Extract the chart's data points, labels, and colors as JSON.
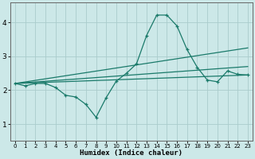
{
  "xlabel": "Humidex (Indice chaleur)",
  "bg_color": "#cce8e8",
  "grid_color": "#aacccc",
  "line_color": "#1a7a6a",
  "xlim": [
    -0.5,
    23.5
  ],
  "ylim": [
    0.5,
    4.6
  ],
  "xticks": [
    0,
    1,
    2,
    3,
    4,
    5,
    6,
    7,
    8,
    9,
    10,
    11,
    12,
    13,
    14,
    15,
    16,
    17,
    18,
    19,
    20,
    21,
    22,
    23
  ],
  "yticks": [
    1,
    2,
    3,
    4
  ],
  "main_curve": {
    "x": [
      0,
      1,
      2,
      3,
      4,
      5,
      6,
      7,
      8,
      9,
      10,
      11,
      12,
      13,
      14,
      15,
      16,
      17,
      18,
      19,
      20,
      21,
      22,
      23
    ],
    "y": [
      2.2,
      2.13,
      2.2,
      2.2,
      2.08,
      1.85,
      1.8,
      1.58,
      1.2,
      1.78,
      2.27,
      2.5,
      2.78,
      3.62,
      4.22,
      4.22,
      3.9,
      3.2,
      2.68,
      2.3,
      2.25,
      2.57,
      2.47,
      2.45
    ]
  },
  "straight_lines": [
    {
      "x": [
        0,
        23
      ],
      "y": [
        2.2,
        3.25
      ]
    },
    {
      "x": [
        0,
        23
      ],
      "y": [
        2.2,
        2.7
      ]
    },
    {
      "x": [
        0,
        23
      ],
      "y": [
        2.2,
        2.45
      ]
    }
  ]
}
